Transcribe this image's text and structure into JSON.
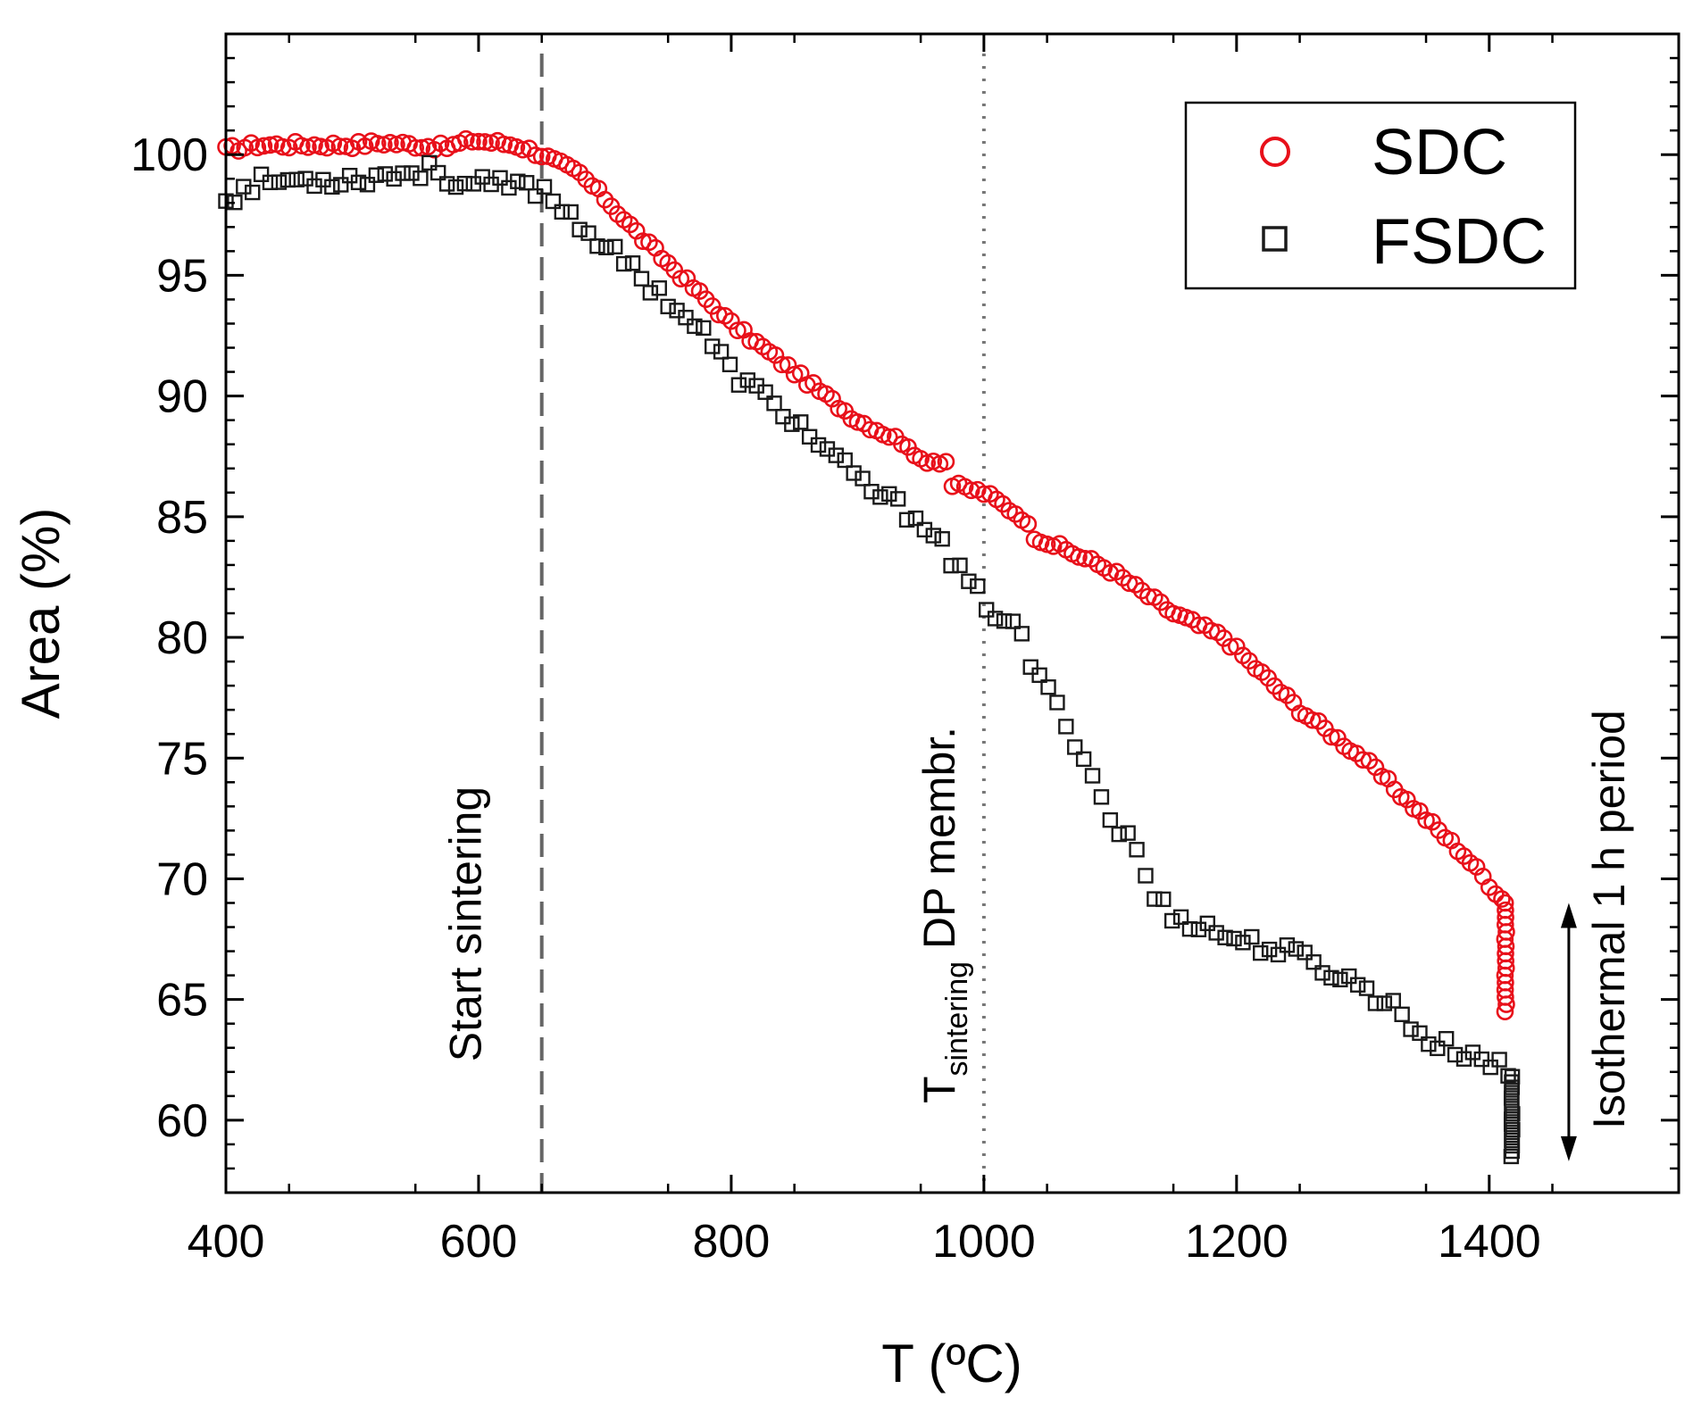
{
  "chart_data": {
    "type": "scatter",
    "title": "",
    "xlabel": "T (ºC)",
    "ylabel": "Area (%)",
    "xlim": [
      400,
      1550
    ],
    "ylim": [
      57,
      105
    ],
    "xticks": [
      400,
      600,
      800,
      1000,
      1200,
      1400
    ],
    "xtick_labels": [
      "400",
      "600",
      "800",
      "1000",
      "1200",
      "1400"
    ],
    "yticks": [
      60,
      65,
      70,
      75,
      80,
      85,
      90,
      95,
      100
    ],
    "ytick_labels": [
      "60",
      "65",
      "70",
      "75",
      "80",
      "85",
      "90",
      "95",
      "100"
    ],
    "grid": false,
    "legend_position": "top-right",
    "series": [
      {
        "name": "SDC",
        "marker": "open-circle",
        "color": "#e8101a",
        "anchors": [
          [
            400,
            100.2
          ],
          [
            425,
            100.4
          ],
          [
            500,
            100.4
          ],
          [
            525,
            100.5
          ],
          [
            575,
            100.3
          ],
          [
            595,
            100.6
          ],
          [
            630,
            100.4
          ],
          [
            650,
            100.0
          ],
          [
            680,
            99.2
          ],
          [
            700,
            98.2
          ],
          [
            730,
            96.5
          ],
          [
            760,
            95.0
          ],
          [
            800,
            93.0
          ],
          [
            850,
            91.0
          ],
          [
            900,
            89.0
          ],
          [
            940,
            88.0
          ],
          [
            945,
            87.4
          ],
          [
            970,
            87.3
          ],
          [
            975,
            86.3
          ],
          [
            1000,
            86.0
          ],
          [
            1030,
            85.0
          ],
          [
            1040,
            84.2
          ],
          [
            1100,
            82.8
          ],
          [
            1150,
            81.0
          ],
          [
            1190,
            80.0
          ],
          [
            1250,
            77.0
          ],
          [
            1300,
            75.0
          ],
          [
            1350,
            72.5
          ],
          [
            1380,
            71.0
          ],
          [
            1413,
            69.0
          ]
        ],
        "step": 5,
        "isothermal_x": 1413,
        "isothermal_y": [
          69.0,
          64.5
        ],
        "isothermal_n": 16
      },
      {
        "name": "FSDC",
        "marker": "open-square",
        "color": "#1a1a1a",
        "anchors": [
          [
            400,
            98.2
          ],
          [
            430,
            98.9
          ],
          [
            500,
            99.0
          ],
          [
            570,
            99.4
          ],
          [
            580,
            98.8
          ],
          [
            650,
            98.6
          ],
          [
            700,
            96.2
          ],
          [
            750,
            94.0
          ],
          [
            780,
            92.5
          ],
          [
            800,
            91.0
          ],
          [
            850,
            89.0
          ],
          [
            900,
            86.5
          ],
          [
            960,
            84.5
          ],
          [
            975,
            83.0
          ],
          [
            1000,
            81.5
          ],
          [
            1030,
            80.0
          ],
          [
            1040,
            78.5
          ],
          [
            1060,
            77.0
          ],
          [
            1080,
            75.0
          ],
          [
            1100,
            72.5
          ],
          [
            1125,
            71.0
          ],
          [
            1130,
            69.5
          ],
          [
            1150,
            68.5
          ],
          [
            1200,
            67.5
          ],
          [
            1250,
            66.8
          ],
          [
            1300,
            65.5
          ],
          [
            1330,
            64.5
          ],
          [
            1350,
            63.3
          ],
          [
            1400,
            62.5
          ],
          [
            1418,
            61.8
          ]
        ],
        "step": 7,
        "isothermal_x": 1418,
        "isothermal_y": [
          61.8,
          58.5
        ],
        "isothermal_n": 16
      }
    ],
    "annotations": [
      {
        "kind": "vline",
        "x": 650,
        "style": "dashed",
        "label": "Start sintering"
      },
      {
        "kind": "vline",
        "x": 1000,
        "style": "dotted",
        "label_main": "T",
        "label_sub": "sintering",
        "label_rest": " DP membr."
      },
      {
        "kind": "double-arrow",
        "x": 1463,
        "y_from": 69.0,
        "y_to": 58.3,
        "label": "Isothermal 1 h period"
      }
    ]
  }
}
